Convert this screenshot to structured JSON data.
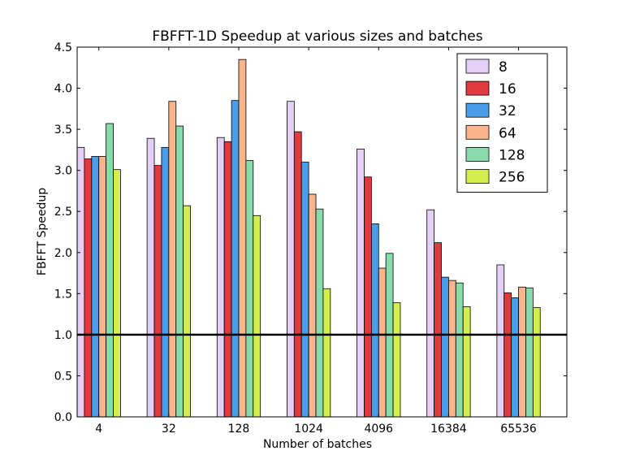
{
  "chart_data": {
    "type": "bar",
    "title": "FBFFT-1D Speedup at various sizes and batches",
    "xlabel": "Number of batches",
    "ylabel": "FBFFT Speedup",
    "ylim": [
      0,
      4.5
    ],
    "yticks": [
      "0.0",
      "0.5",
      "1.0",
      "1.5",
      "2.0",
      "2.5",
      "3.0",
      "3.5",
      "4.0",
      "4.5"
    ],
    "categories": [
      "4",
      "32",
      "128",
      "1024",
      "4096",
      "16384",
      "65536"
    ],
    "series": [
      {
        "name": "8",
        "color": "#e5d0f5",
        "values": [
          3.28,
          3.39,
          3.4,
          3.84,
          3.26,
          2.52,
          1.85
        ]
      },
      {
        "name": "16",
        "color": "#e0393e",
        "values": [
          3.14,
          3.06,
          3.35,
          3.47,
          2.92,
          2.12,
          1.51
        ]
      },
      {
        "name": "32",
        "color": "#4a9de8",
        "values": [
          3.17,
          3.28,
          3.85,
          3.1,
          2.35,
          1.7,
          1.45
        ]
      },
      {
        "name": "64",
        "color": "#f8b48a",
        "values": [
          3.17,
          3.84,
          4.35,
          2.71,
          1.81,
          1.66,
          1.58
        ]
      },
      {
        "name": "128",
        "color": "#88dcac",
        "values": [
          3.57,
          3.54,
          3.12,
          2.53,
          1.99,
          1.63,
          1.57
        ]
      },
      {
        "name": "256",
        "color": "#d4ee4e",
        "values": [
          3.01,
          2.57,
          2.45,
          1.56,
          1.39,
          1.34,
          1.33
        ]
      }
    ],
    "reference_line": {
      "y": 1.0,
      "color": "#000000"
    },
    "legend_position": "top-right",
    "grid": false
  }
}
